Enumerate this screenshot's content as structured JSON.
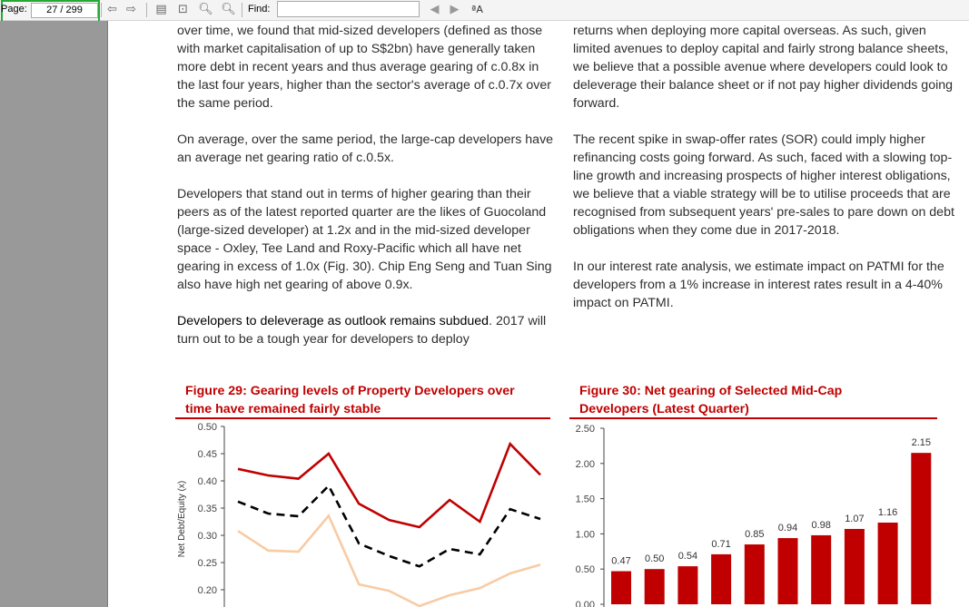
{
  "toolbar": {
    "page_label": "Page:",
    "page_value": "27",
    "page_total": "/ 299",
    "find_label": "Find:",
    "find_value": "",
    "icons": [
      "prev-page-icon",
      "next-page-icon",
      "fit-page-icon",
      "fit-width-icon",
      "zoom-out-icon",
      "zoom-in-icon",
      "find-prev-icon",
      "find-next-icon",
      "match-case-icon"
    ]
  },
  "left_col": [
    {
      "text": "over time, we found that mid-sized developers (defined as those with market capitalisation of up to S$2bn) have generally taken more debt in recent years and thus average gearing of c.0.8x in the last four years, higher than the sector's average of c.0.7x over the same period."
    },
    {
      "text": "On average, over the same period, the large-cap developers have an average net gearing ratio of c.0.5x."
    },
    {
      "text": "Developers that stand out in terms of higher gearing than their peers as of the latest reported quarter are the likes of Guocoland (large-sized developer) at 1.2x and in the mid-sized developer space - Oxley, Tee Land and Roxy-Pacific which all have net gearing in excess of 1.0x (Fig. 30). Chip Eng Seng and Tuan Sing also have high net gearing of above 0.9x."
    },
    {
      "lead": "Developers to deleverage as outlook remains subdued",
      "text": ". 2017 will turn out to be a tough year for developers to deploy"
    }
  ],
  "right_col": [
    {
      "text": "returns when deploying more capital overseas. As such, given limited avenues to deploy capital and fairly strong balance sheets, we believe that a possible avenue where developers could look to deleverage their balance sheet or if not pay higher dividends going forward."
    },
    {
      "text": "The recent spike in swap-offer rates (SOR) could imply higher refinancing costs going forward. As such, faced with a slowing top-line growth and increasing prospects of higher interest obligations, we believe that a viable strategy will be to utilise proceeds that are recognised from subsequent years' pre-sales to pare down on debt obligations when they come due in 2017-2018."
    },
    {
      "text": "In our interest rate analysis, we estimate impact on PATMI for the developers from a 1% increase in interest rates result in a 4-40% impact on PATMI."
    }
  ],
  "fig29_title": [
    "Figure 29: Gearing levels of Property Developers over",
    "time have remained fairly stable"
  ],
  "fig30_title": [
    "Figure 30: Net gearing of Selected Mid-Cap",
    "Developers (Latest Quarter)"
  ],
  "colors": {
    "red": "#c00000",
    "peach": "#f8cba4",
    "black": "#000000"
  },
  "chart_data": [
    {
      "type": "line",
      "title": "Figure 29: Gearing levels of Property Developers over time have remained fairly stable",
      "ylabel": "Net Debt/Equity (x)",
      "ylim": [
        0.2,
        0.5
      ],
      "yticks": [
        "0.50",
        "0.45",
        "0.40",
        "0.35",
        "0.30",
        "0.25",
        "0.20"
      ],
      "ytick_values": [
        0.5,
        0.45,
        0.4,
        0.35,
        0.3,
        0.25,
        0.2
      ],
      "series": [
        {
          "style": "solid",
          "color": "#c00000",
          "values": [
            0.422,
            0.41,
            0.404,
            0.45,
            0.358,
            0.328,
            0.315,
            0.365,
            0.325,
            0.468,
            0.411
          ]
        },
        {
          "style": "dashed",
          "color": "#000000",
          "values": [
            0.362,
            0.34,
            0.335,
            0.391,
            0.285,
            0.262,
            0.243,
            0.275,
            0.265,
            0.348,
            0.33
          ]
        },
        {
          "style": "solid",
          "color": "#f8cba4",
          "values": [
            0.308,
            0.272,
            0.27,
            0.336,
            0.21,
            0.198,
            0.17,
            0.19,
            0.203,
            0.23,
            0.246
          ]
        }
      ]
    },
    {
      "type": "bar",
      "title": "Figure 30: Net gearing of Selected Mid-Cap Developers (Latest Quarter)",
      "ylim": [
        0,
        2.5
      ],
      "yticks": [
        "2.50",
        "2.00",
        "1.50",
        "1.00",
        "0.50",
        "0.00"
      ],
      "ytick_values": [
        2.5,
        2.0,
        1.5,
        1.0,
        0.5,
        0.0
      ],
      "values": [
        0.47,
        0.5,
        0.54,
        0.71,
        0.85,
        0.94,
        0.98,
        1.07,
        1.16,
        2.15
      ],
      "labels": [
        "0.47",
        "0.50",
        "0.54",
        "0.71",
        "0.85",
        "0.94",
        "0.98",
        "1.07",
        "1.16",
        "2.15"
      ],
      "color": "#c00000"
    }
  ]
}
